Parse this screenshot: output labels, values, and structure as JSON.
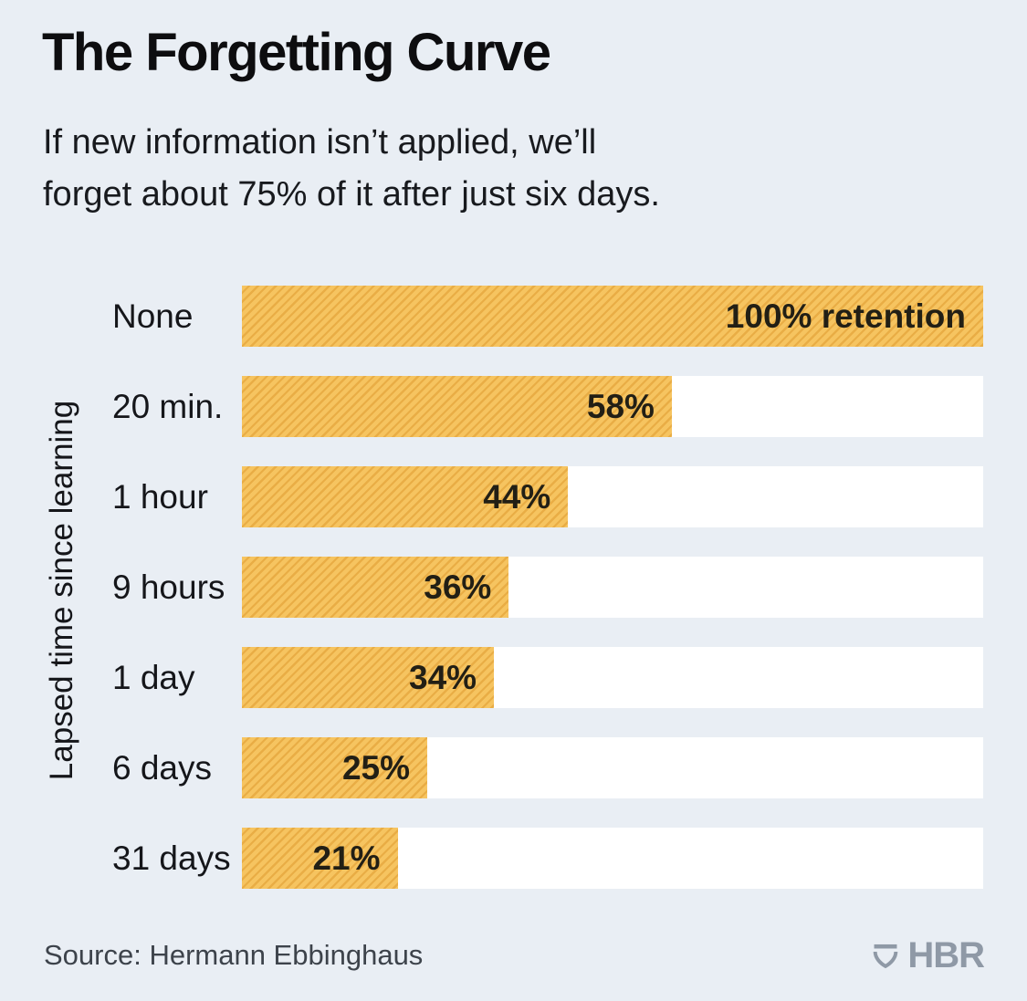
{
  "header": {
    "title": "The Forgetting Curve",
    "subtitle_line1": "If new information isn’t applied, we’ll",
    "subtitle_line2": "forget about 75% of it after just six days."
  },
  "chart_data": {
    "type": "bar",
    "orientation": "horizontal",
    "title": "The Forgetting Curve",
    "ylabel": "Lapsed time since learning",
    "xlabel": "",
    "xlim": [
      0,
      100
    ],
    "unit": "%",
    "grid": false,
    "legend": "none",
    "categories": [
      "None",
      "20 min.",
      "1 hour",
      "9 hours",
      "1 day",
      "6 days",
      "31 days"
    ],
    "values": [
      100,
      58,
      44,
      36,
      34,
      25,
      21
    ],
    "rows": [
      {
        "label": "None",
        "value": 100,
        "value_label": "100% retention"
      },
      {
        "label": "20 min.",
        "value": 58,
        "value_label": "58%"
      },
      {
        "label": "1 hour",
        "value": 44,
        "value_label": "44%"
      },
      {
        "label": "9 hours",
        "value": 36,
        "value_label": "36%"
      },
      {
        "label": "1 day",
        "value": 34,
        "value_label": "34%"
      },
      {
        "label": "6 days",
        "value": 25,
        "value_label": "25%"
      },
      {
        "label": "31 days",
        "value": 21,
        "value_label": "21%"
      }
    ],
    "colors": {
      "bar_fill": "#f6c460",
      "bar_hatch_stripe": "#e9ad45",
      "bar_track": "#ffffff",
      "background": "#e9eef4",
      "text": "#15161a",
      "value_text": "#221f15"
    }
  },
  "footer": {
    "source": "Source: Hermann Ebbinghaus",
    "brand": "HBR"
  }
}
